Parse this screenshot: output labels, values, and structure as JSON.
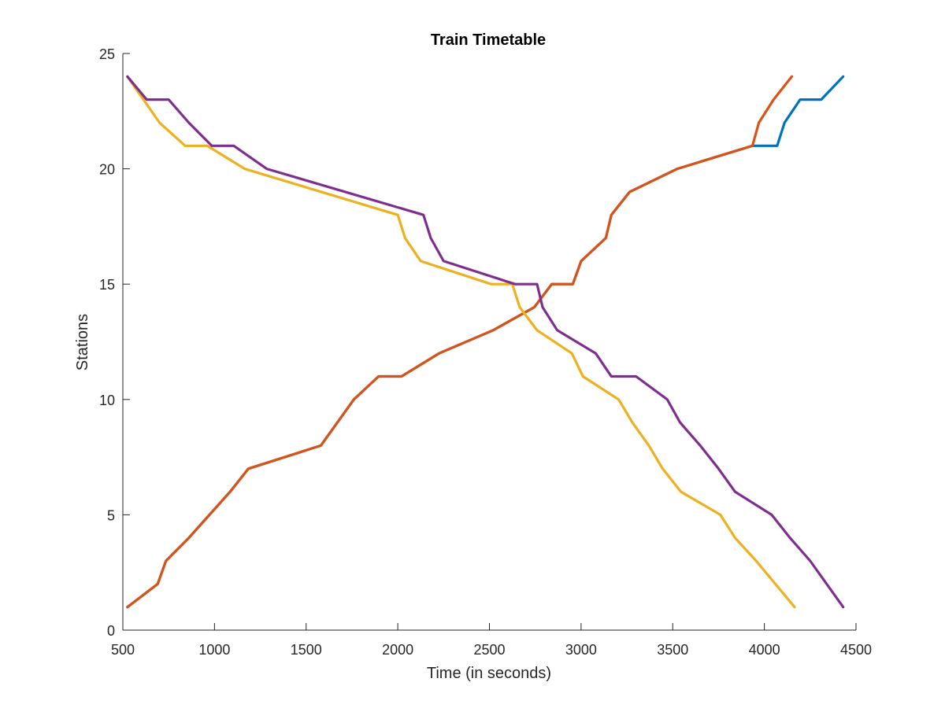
{
  "chart_data": {
    "type": "line",
    "title": "Train Timetable",
    "xlabel": "Time (in seconds)",
    "ylabel": "Stations",
    "xlim": [
      500,
      4500
    ],
    "ylim": [
      0,
      25
    ],
    "xticks": [
      500,
      1000,
      1500,
      2000,
      2500,
      3000,
      3500,
      4000,
      4500
    ],
    "yticks": [
      0,
      5,
      10,
      15,
      20,
      25
    ],
    "grid": false,
    "series": [
      {
        "color": "#0072BD",
        "x": [
          525,
          690,
          735,
          860,
          1085,
          1185,
          1580,
          1760,
          1895,
          2020,
          2225,
          2520,
          2745,
          2840,
          2955,
          3000,
          3135,
          3165,
          3265,
          3525,
          3935,
          4070,
          4110,
          4195,
          4310,
          4430
        ],
        "y": [
          1,
          2,
          3,
          4,
          6,
          7,
          8,
          10,
          11,
          11,
          12,
          13,
          14,
          15,
          15,
          16,
          17,
          18,
          19,
          20,
          21,
          21,
          22,
          23,
          23,
          24
        ]
      },
      {
        "color": "#D95319",
        "x": [
          525,
          690,
          735,
          860,
          1085,
          1185,
          1580,
          1760,
          1895,
          2020,
          2225,
          2520,
          2745,
          2840,
          2955,
          3000,
          3135,
          3165,
          3265,
          3525,
          3935,
          3970,
          4050,
          4150
        ],
        "y": [
          1,
          2,
          3,
          4,
          6,
          7,
          8,
          10,
          11,
          11,
          12,
          13,
          14,
          15,
          15,
          16,
          17,
          18,
          19,
          20,
          21,
          22,
          23,
          24
        ]
      },
      {
        "color": "#EDB120",
        "x": [
          525,
          700,
          840,
          960,
          1165,
          2000,
          2040,
          2125,
          2510,
          2625,
          2665,
          2760,
          2950,
          3010,
          3205,
          3280,
          3370,
          3445,
          3545,
          3760,
          3840,
          3955,
          4165
        ],
        "y": [
          24,
          22,
          21,
          21,
          20,
          18,
          17,
          16,
          15,
          15,
          14,
          13,
          12,
          11,
          10,
          9,
          8,
          7,
          6,
          5,
          4,
          3,
          1
        ]
      },
      {
        "color": "#7E2F8E",
        "x": [
          525,
          630,
          750,
          860,
          985,
          1105,
          1285,
          2140,
          2180,
          2250,
          2640,
          2760,
          2790,
          2870,
          3080,
          3165,
          3300,
          3470,
          3540,
          3650,
          3750,
          3840,
          4040,
          4140,
          4250,
          4430
        ],
        "y": [
          24,
          23,
          23,
          22,
          21,
          21,
          20,
          18,
          17,
          16,
          15,
          15,
          14,
          13,
          12,
          11,
          11,
          10,
          9,
          8,
          7,
          6,
          5,
          4,
          3,
          1
        ]
      }
    ]
  }
}
